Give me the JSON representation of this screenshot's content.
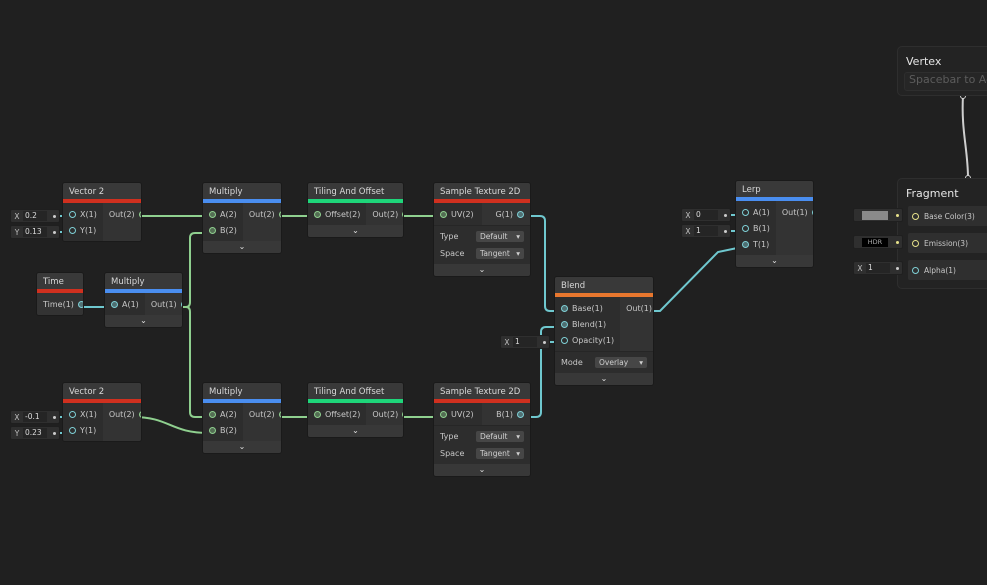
{
  "port_colors": {
    "vector2": "#8fd08f",
    "float": "#7fd0d6",
    "vector3": "#e6e18a",
    "other": "#d0d0d0"
  },
  "nodes": [
    {
      "id": "vec2a",
      "title": "Vector 2",
      "color": "#d0301f",
      "inputs": [
        {
          "label": "X(1)",
          "type": "float"
        },
        {
          "label": "Y(1)",
          "type": "float"
        }
      ],
      "outputs": [
        {
          "label": "Out(2)",
          "type": "vector2"
        }
      ],
      "chevron": false
    },
    {
      "id": "multA",
      "title": "Multiply",
      "color": "#4a8ef0",
      "inputs": [
        {
          "label": "A(2)",
          "type": "vector2"
        },
        {
          "label": "B(2)",
          "type": "vector2"
        }
      ],
      "outputs": [
        {
          "label": "Out(2)",
          "type": "vector2"
        }
      ],
      "chevron": true
    },
    {
      "id": "tileA",
      "title": "Tiling And Offset",
      "color": "#1ed67a",
      "inputs": [
        {
          "label": "Offset(2)",
          "type": "vector2"
        }
      ],
      "outputs": [
        {
          "label": "Out(2)",
          "type": "vector2"
        }
      ],
      "chevron": true
    },
    {
      "id": "sampA",
      "title": "Sample Texture 2D",
      "color": "#d0301f",
      "inputs": [
        {
          "label": "UV(2)",
          "type": "vector2"
        }
      ],
      "outputs": [
        {
          "label": "G(1)",
          "type": "float"
        }
      ],
      "controls": [
        {
          "label": "Type",
          "value": "Default"
        },
        {
          "label": "Space",
          "value": "Tangent"
        }
      ],
      "chevron": true
    },
    {
      "id": "time",
      "title": "Time",
      "color": "#d0301f",
      "inputs": [],
      "outputs": [
        {
          "label": "Time(1)",
          "type": "float"
        }
      ],
      "chevron": false
    },
    {
      "id": "multM",
      "title": "Multiply",
      "color": "#4a8ef0",
      "inputs": [
        {
          "label": "A(1)",
          "type": "float"
        }
      ],
      "outputs": [
        {
          "label": "Out(1)",
          "type": "float"
        }
      ],
      "chevron": true
    },
    {
      "id": "vec2b",
      "title": "Vector 2",
      "color": "#d0301f",
      "inputs": [
        {
          "label": "X(1)",
          "type": "float"
        },
        {
          "label": "Y(1)",
          "type": "float"
        }
      ],
      "outputs": [
        {
          "label": "Out(2)",
          "type": "vector2"
        }
      ],
      "chevron": false
    },
    {
      "id": "multB",
      "title": "Multiply",
      "color": "#4a8ef0",
      "inputs": [
        {
          "label": "A(2)",
          "type": "vector2"
        },
        {
          "label": "B(2)",
          "type": "vector2"
        }
      ],
      "outputs": [
        {
          "label": "Out(2)",
          "type": "vector2"
        }
      ],
      "chevron": true
    },
    {
      "id": "tileB",
      "title": "Tiling And Offset",
      "color": "#1ed67a",
      "inputs": [
        {
          "label": "Offset(2)",
          "type": "vector2"
        }
      ],
      "outputs": [
        {
          "label": "Out(2)",
          "type": "vector2"
        }
      ],
      "chevron": true
    },
    {
      "id": "sampB",
      "title": "Sample Texture 2D",
      "color": "#d0301f",
      "inputs": [
        {
          "label": "UV(2)",
          "type": "vector2"
        }
      ],
      "outputs": [
        {
          "label": "B(1)",
          "type": "float"
        }
      ],
      "controls": [
        {
          "label": "Type",
          "value": "Default"
        },
        {
          "label": "Space",
          "value": "Tangent"
        }
      ],
      "chevron": true
    },
    {
      "id": "blend",
      "title": "Blend",
      "color": "#e8772e",
      "inputs": [
        {
          "label": "Base(1)",
          "type": "float"
        },
        {
          "label": "Blend(1)",
          "type": "float"
        },
        {
          "label": "Opacity(1)",
          "type": "float"
        }
      ],
      "outputs": [
        {
          "label": "Out(1)",
          "type": "float"
        }
      ],
      "controls": [
        {
          "label": "Mode",
          "value": "Overlay"
        }
      ],
      "chevron": true
    },
    {
      "id": "lerp",
      "title": "Lerp",
      "color": "#4a8ef0",
      "inputs": [
        {
          "label": "A(1)",
          "type": "float"
        },
        {
          "label": "B(1)",
          "type": "float"
        },
        {
          "label": "T(1)",
          "type": "float"
        }
      ],
      "outputs": [
        {
          "label": "Out(1)",
          "type": "float"
        }
      ],
      "chevron": true
    }
  ],
  "fields": [
    {
      "id": "v2a_x",
      "label": "X",
      "value": "0.2"
    },
    {
      "id": "v2a_y",
      "label": "Y",
      "value": "0.13"
    },
    {
      "id": "v2b_x",
      "label": "X",
      "value": "-0.1"
    },
    {
      "id": "v2b_y",
      "label": "Y",
      "value": "0.23"
    },
    {
      "id": "blend_op",
      "label": "X",
      "value": "1"
    },
    {
      "id": "lerp_a",
      "label": "X",
      "value": "0"
    },
    {
      "id": "lerp_b",
      "label": "X",
      "value": "1"
    },
    {
      "id": "alpha",
      "label": "X",
      "value": "1"
    }
  ],
  "vertex": {
    "title": "Vertex",
    "placeholder": "Spacebar to Add Node"
  },
  "fragment": {
    "title": "Fragment",
    "ports": [
      {
        "label": "Base Color(3)",
        "type": "vector3",
        "input": "color-swatch",
        "swatch": "#8a8a8a"
      },
      {
        "label": "Emission(3)",
        "type": "vector3",
        "input": "hdr-swatch",
        "swatch_label": "HDR"
      },
      {
        "label": "Alpha(1)",
        "type": "float",
        "input": "field"
      }
    ]
  },
  "wire_color_green": "#8fd08f",
  "wire_color_cyan": "#6fc8cf",
  "wire_color_white": "#cfcfcf"
}
